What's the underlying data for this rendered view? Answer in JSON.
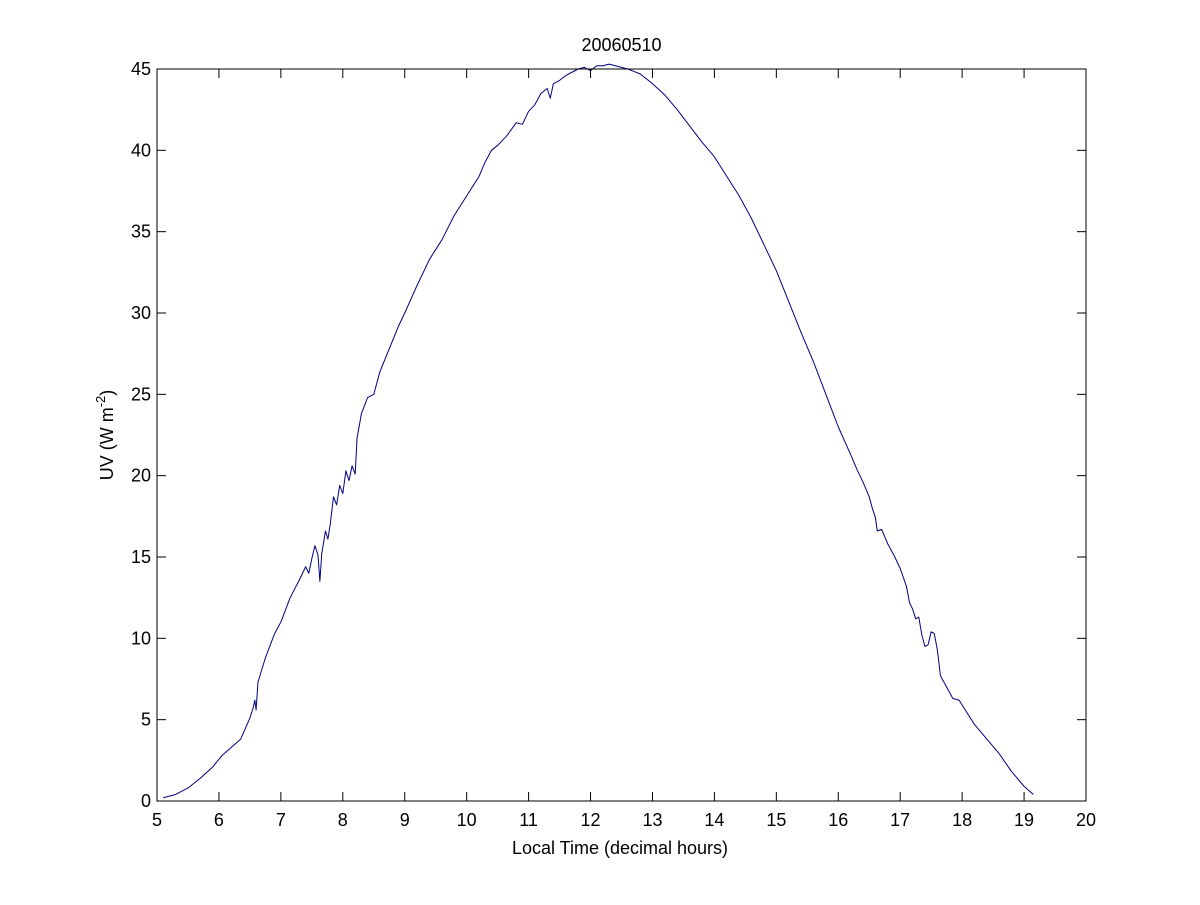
{
  "chart_data": {
    "type": "line",
    "title": "20060510",
    "xlabel": "Local Time (decimal hours)",
    "ylabel": {
      "main": "UV (W m",
      "superscript": "-2",
      "close": ")"
    },
    "xlim": [
      5,
      20
    ],
    "ylim": [
      0,
      45
    ],
    "x_ticks": [
      5,
      6,
      7,
      8,
      9,
      10,
      11,
      12,
      13,
      14,
      15,
      16,
      17,
      18,
      19,
      20
    ],
    "y_ticks": [
      0,
      5,
      10,
      15,
      20,
      25,
      30,
      35,
      40,
      45
    ],
    "grid": false,
    "legend": "none",
    "series": [
      {
        "color": "#00007f",
        "points": [
          [
            5.1,
            0.2
          ],
          [
            5.3,
            0.4
          ],
          [
            5.5,
            0.8
          ],
          [
            5.7,
            1.4
          ],
          [
            5.9,
            2.1
          ],
          [
            6.05,
            2.8
          ],
          [
            6.2,
            3.3
          ],
          [
            6.35,
            3.8
          ],
          [
            6.5,
            5.1
          ],
          [
            6.55,
            5.7
          ],
          [
            6.58,
            6.2
          ],
          [
            6.6,
            5.6
          ],
          [
            6.63,
            7.3
          ],
          [
            6.75,
            8.8
          ],
          [
            6.9,
            10.3
          ],
          [
            7.0,
            11.0
          ],
          [
            7.15,
            12.5
          ],
          [
            7.3,
            13.6
          ],
          [
            7.4,
            14.4
          ],
          [
            7.45,
            14.0
          ],
          [
            7.5,
            14.9
          ],
          [
            7.55,
            15.7
          ],
          [
            7.6,
            15.1
          ],
          [
            7.63,
            13.5
          ],
          [
            7.66,
            15.2
          ],
          [
            7.72,
            16.6
          ],
          [
            7.76,
            16.1
          ],
          [
            7.8,
            17.1
          ],
          [
            7.85,
            18.7
          ],
          [
            7.9,
            18.2
          ],
          [
            7.95,
            19.4
          ],
          [
            8.0,
            18.9
          ],
          [
            8.05,
            20.3
          ],
          [
            8.1,
            19.7
          ],
          [
            8.15,
            20.6
          ],
          [
            8.2,
            20.1
          ],
          [
            8.23,
            22.3
          ],
          [
            8.3,
            23.8
          ],
          [
            8.4,
            24.8
          ],
          [
            8.5,
            25.0
          ],
          [
            8.6,
            26.4
          ],
          [
            8.75,
            27.8
          ],
          [
            8.9,
            29.2
          ],
          [
            9.0,
            30.0
          ],
          [
            9.2,
            31.7
          ],
          [
            9.4,
            33.3
          ],
          [
            9.6,
            34.5
          ],
          [
            9.8,
            36.0
          ],
          [
            10.0,
            37.2
          ],
          [
            10.2,
            38.4
          ],
          [
            10.3,
            39.3
          ],
          [
            10.4,
            40.0
          ],
          [
            10.5,
            40.3
          ],
          [
            10.65,
            40.9
          ],
          [
            10.8,
            41.7
          ],
          [
            10.9,
            41.6
          ],
          [
            11.0,
            42.4
          ],
          [
            11.1,
            42.8
          ],
          [
            11.2,
            43.5
          ],
          [
            11.3,
            43.8
          ],
          [
            11.35,
            43.2
          ],
          [
            11.4,
            44.1
          ],
          [
            11.5,
            44.3
          ],
          [
            11.6,
            44.6
          ],
          [
            11.7,
            44.8
          ],
          [
            11.8,
            45.0
          ],
          [
            11.9,
            45.1
          ],
          [
            12.0,
            44.9
          ],
          [
            12.1,
            45.2
          ],
          [
            12.2,
            45.2
          ],
          [
            12.3,
            45.3
          ],
          [
            12.4,
            45.2
          ],
          [
            12.5,
            45.1
          ],
          [
            12.6,
            45.0
          ],
          [
            12.8,
            44.7
          ],
          [
            13.0,
            44.1
          ],
          [
            13.2,
            43.4
          ],
          [
            13.4,
            42.5
          ],
          [
            13.6,
            41.5
          ],
          [
            13.8,
            40.5
          ],
          [
            14.0,
            39.6
          ],
          [
            14.2,
            38.4
          ],
          [
            14.4,
            37.2
          ],
          [
            14.6,
            35.8
          ],
          [
            14.8,
            34.2
          ],
          [
            15.0,
            32.6
          ],
          [
            15.2,
            30.7
          ],
          [
            15.4,
            28.8
          ],
          [
            15.6,
            27.0
          ],
          [
            15.8,
            25.0
          ],
          [
            16.0,
            23.0
          ],
          [
            16.2,
            21.3
          ],
          [
            16.3,
            20.4
          ],
          [
            16.4,
            19.6
          ],
          [
            16.5,
            18.7
          ],
          [
            16.55,
            18.0
          ],
          [
            16.6,
            17.4
          ],
          [
            16.63,
            16.6
          ],
          [
            16.7,
            16.7
          ],
          [
            16.8,
            15.8
          ],
          [
            16.9,
            15.1
          ],
          [
            17.0,
            14.3
          ],
          [
            17.1,
            13.2
          ],
          [
            17.15,
            12.2
          ],
          [
            17.2,
            11.8
          ],
          [
            17.25,
            11.2
          ],
          [
            17.3,
            11.3
          ],
          [
            17.35,
            10.2
          ],
          [
            17.4,
            9.5
          ],
          [
            17.45,
            9.6
          ],
          [
            17.5,
            10.4
          ],
          [
            17.55,
            10.3
          ],
          [
            17.6,
            9.3
          ],
          [
            17.65,
            7.7
          ],
          [
            17.75,
            7.0
          ],
          [
            17.85,
            6.3
          ],
          [
            17.95,
            6.2
          ],
          [
            18.05,
            5.6
          ],
          [
            18.2,
            4.7
          ],
          [
            18.4,
            3.8
          ],
          [
            18.6,
            2.9
          ],
          [
            18.8,
            1.8
          ],
          [
            19.0,
            0.9
          ],
          [
            19.15,
            0.4
          ]
        ]
      }
    ]
  }
}
